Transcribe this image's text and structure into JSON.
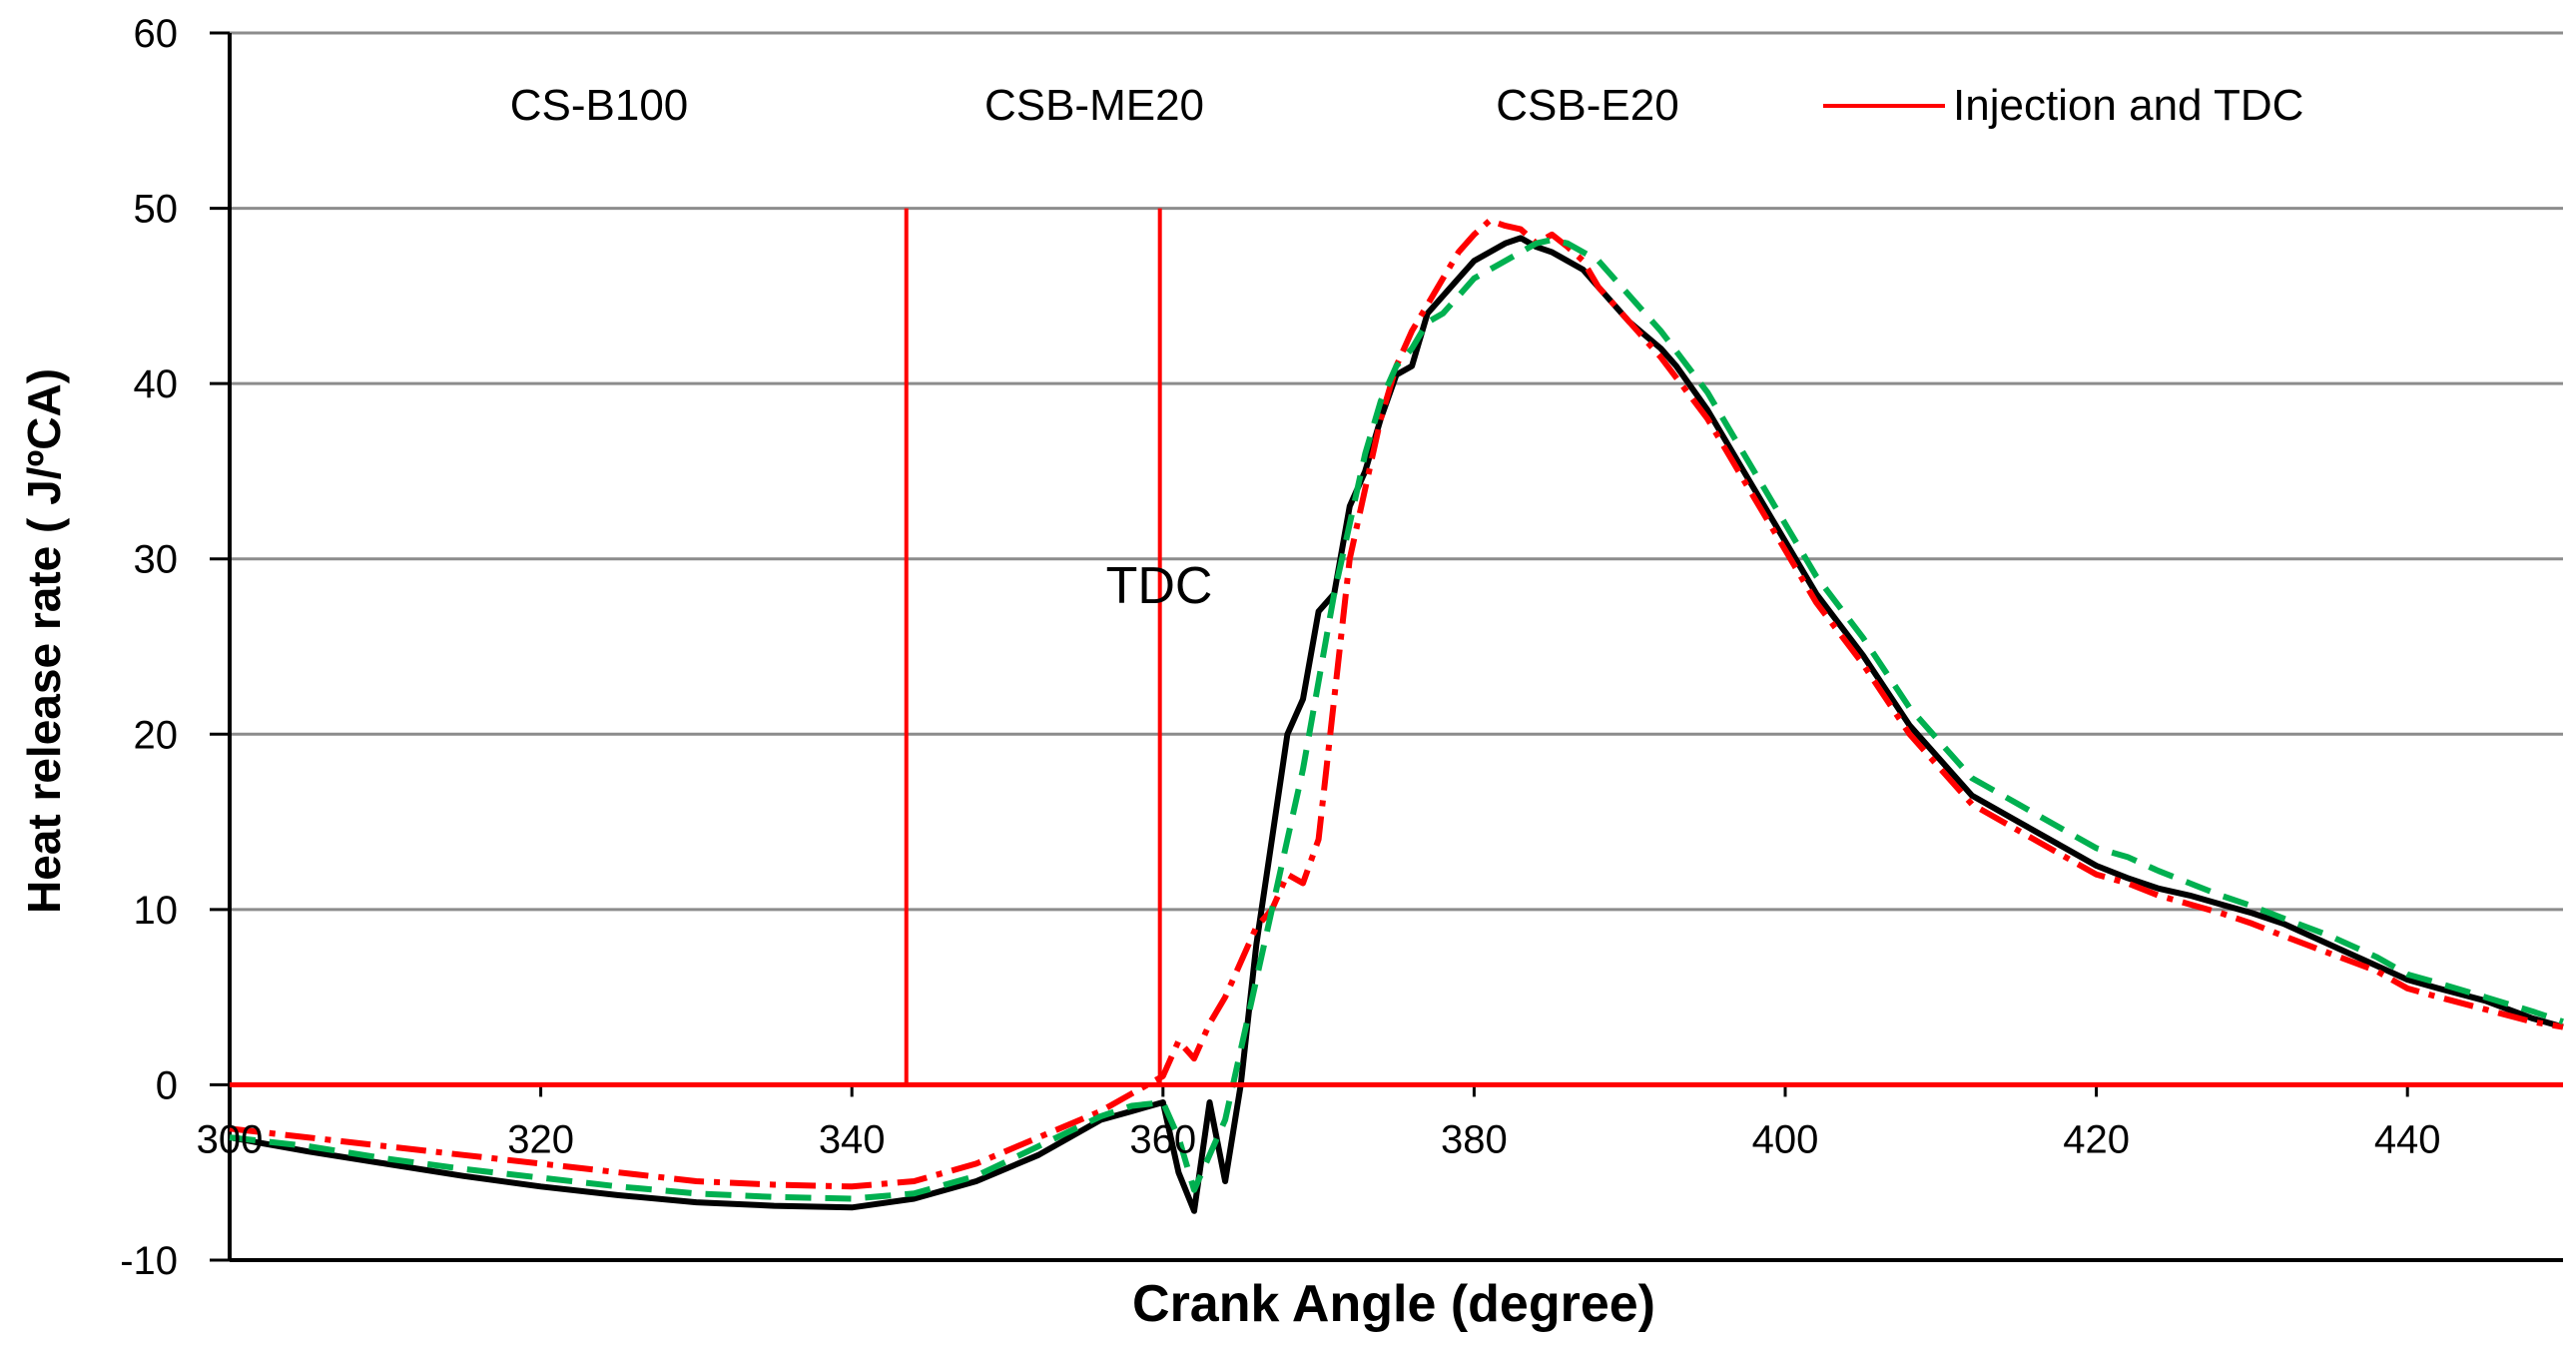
{
  "chart_data": {
    "type": "line",
    "title": "",
    "xlabel": "Crank Angle  (degree)",
    "ylabel": "Heat release rate ( J/ºCA)",
    "xlim": [
      300,
      450
    ],
    "ylim": [
      -10,
      60
    ],
    "xticks": [
      300,
      320,
      340,
      360,
      380,
      400,
      420,
      440
    ],
    "yticks": [
      -10,
      0,
      10,
      20,
      30,
      40,
      50,
      60
    ],
    "grid": true,
    "legend": [
      "CS-B100",
      "CSB-ME20",
      "CSB-E20",
      "Injection and TDC"
    ],
    "annotation": "TDC",
    "series": [
      {
        "name": "CS-B100",
        "color": "#000000",
        "style": "solid",
        "x": [
          300,
          305,
          310,
          315,
          320,
          325,
          330,
          335,
          340,
          344,
          348,
          352,
          356,
          358,
          360,
          361,
          362,
          363,
          364,
          365,
          366,
          367,
          368,
          369,
          370,
          371,
          372,
          373,
          374,
          375,
          376,
          377,
          378,
          379,
          380,
          381,
          382,
          383,
          384,
          385,
          386,
          387,
          388,
          390,
          392,
          393,
          395,
          398,
          400,
          402,
          405,
          408,
          410,
          412,
          415,
          418,
          420,
          422,
          424,
          426,
          428,
          430,
          432,
          435,
          438,
          440,
          442,
          445,
          448,
          450
        ],
        "y": [
          -3,
          -3.8,
          -4.5,
          -5.2,
          -5.8,
          -6.3,
          -6.7,
          -6.9,
          -7.0,
          -6.5,
          -5.5,
          -4,
          -2,
          -1.5,
          -1,
          -5,
          -7.2,
          -1,
          -5.5,
          0,
          8,
          14,
          20,
          22,
          27,
          28,
          33,
          35,
          38,
          40.5,
          41,
          44,
          45,
          46,
          47,
          47.5,
          48,
          48.3,
          47.8,
          47.5,
          47,
          46.5,
          45.5,
          43.5,
          42,
          41,
          38.5,
          34,
          31,
          28,
          24.5,
          20.5,
          18.5,
          16.5,
          15,
          13.5,
          12.5,
          11.8,
          11.2,
          10.8,
          10.3,
          9.8,
          9.2,
          8,
          6.8,
          6,
          5.5,
          4.8,
          3.8,
          3.3
        ]
      },
      {
        "name": "CSB-ME20",
        "color": "#ff0000",
        "style": "dashdot",
        "x": [
          300,
          305,
          310,
          315,
          320,
          325,
          330,
          335,
          340,
          344,
          348,
          352,
          356,
          358,
          360,
          361,
          362,
          363,
          364,
          365,
          366,
          367,
          368,
          369,
          370,
          371,
          372,
          373,
          374,
          375,
          376,
          377,
          378,
          379,
          380,
          381,
          382,
          383,
          384,
          385,
          386,
          387,
          388,
          390,
          392,
          395,
          398,
          400,
          402,
          405,
          408,
          410,
          412,
          415,
          418,
          420,
          422,
          424,
          426,
          428,
          430,
          432,
          435,
          438,
          440,
          442,
          445,
          448,
          450
        ],
        "y": [
          -2.5,
          -3,
          -3.5,
          -4,
          -4.5,
          -5,
          -5.5,
          -5.7,
          -5.8,
          -5.5,
          -4.5,
          -3,
          -1.5,
          -0.5,
          0.5,
          2.5,
          1.5,
          3.5,
          5,
          7,
          9,
          10,
          12,
          11.5,
          14,
          22,
          30,
          34,
          38,
          41,
          43,
          44.5,
          46,
          47.5,
          48.5,
          49.3,
          49,
          48.8,
          48,
          48.5,
          47.8,
          47,
          45.5,
          43.5,
          41.5,
          38,
          33.5,
          30.5,
          27.5,
          24,
          20,
          18,
          16,
          14.5,
          13,
          12,
          11.5,
          10.8,
          10.3,
          9.8,
          9.2,
          8.5,
          7.5,
          6.5,
          5.5,
          5,
          4.3,
          3.6,
          3.3
        ]
      },
      {
        "name": "CSB-E20",
        "color": "#00b050",
        "style": "dashed",
        "x": [
          300,
          305,
          310,
          315,
          320,
          325,
          330,
          335,
          340,
          344,
          348,
          352,
          356,
          358,
          360,
          361,
          362,
          363,
          364,
          365,
          366,
          367,
          368,
          369,
          370,
          371,
          372,
          373,
          374,
          375,
          376,
          377,
          378,
          379,
          380,
          381,
          382,
          383,
          384,
          385,
          386,
          387,
          388,
          390,
          392,
          395,
          398,
          400,
          402,
          405,
          408,
          410,
          412,
          415,
          418,
          420,
          422,
          424,
          426,
          428,
          430,
          432,
          435,
          438,
          440,
          442,
          445,
          448,
          450
        ],
        "y": [
          -3,
          -3.5,
          -4.2,
          -4.8,
          -5.3,
          -5.8,
          -6.2,
          -6.4,
          -6.5,
          -6.2,
          -5.2,
          -3.5,
          -1.8,
          -1.2,
          -1,
          -3,
          -6,
          -4,
          -2,
          2,
          6,
          10,
          14,
          18,
          23,
          28,
          32,
          36,
          39,
          41,
          42,
          43.5,
          44,
          45,
          46,
          46.5,
          47,
          47.5,
          48,
          48.2,
          48,
          47.5,
          47,
          45,
          43,
          39.5,
          35,
          32,
          29,
          25.5,
          21.5,
          19.5,
          17.5,
          16,
          14.5,
          13.5,
          13,
          12.2,
          11.5,
          10.8,
          10.2,
          9.5,
          8.5,
          7.3,
          6.3,
          5.8,
          5,
          4.2,
          3.6
        ]
      }
    ],
    "markers": {
      "name": "Injection and TDC",
      "color": "#ff0000",
      "vlines": [
        343.5,
        359.8
      ],
      "vline_top": 50,
      "hline": 0
    }
  }
}
